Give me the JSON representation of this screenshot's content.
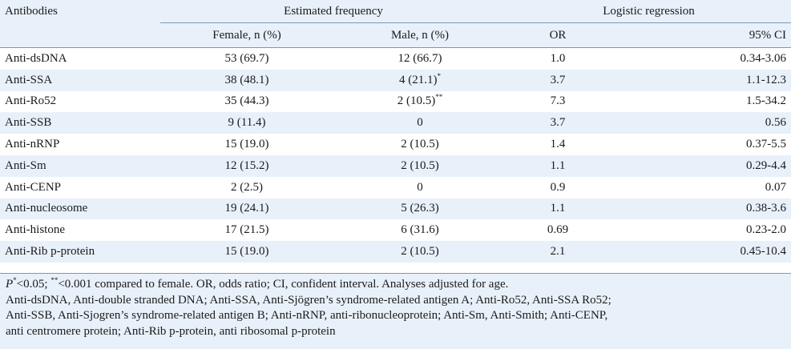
{
  "table": {
    "header": {
      "col_antibodies": "Antibodies",
      "group_frequency": "Estimated frequency",
      "group_regression": "Logistic regression",
      "col_female": "Female, n (%)",
      "col_male": "Male, n (%)",
      "col_or": "OR",
      "col_ci": "95% CI"
    },
    "rows": [
      {
        "antibody": "Anti-dsDNA",
        "female": "53 (69.7)",
        "male": "12 (66.7)",
        "male_mark": "",
        "or": "1.0",
        "ci": "0.34-3.06"
      },
      {
        "antibody": "Anti-SSA",
        "female": "38 (48.1)",
        "male": "4 (21.1)",
        "male_mark": "*",
        "or": "3.7",
        "ci": "1.1-12.3"
      },
      {
        "antibody": "Anti-Ro52",
        "female": "35 (44.3)",
        "male": "2 (10.5)",
        "male_mark": "**",
        "or": "7.3",
        "ci": "1.5-34.2"
      },
      {
        "antibody": "Anti-SSB",
        "female": "9 (11.4)",
        "male": "0",
        "male_mark": "",
        "or": "3.7",
        "ci": "0.56"
      },
      {
        "antibody": "Anti-nRNP",
        "female": "15 (19.0)",
        "male": "2 (10.5)",
        "male_mark": "",
        "or": "1.4",
        "ci": "0.37-5.5"
      },
      {
        "antibody": "Anti-Sm",
        "female": "12 (15.2)",
        "male": "2 (10.5)",
        "male_mark": "",
        "or": "1.1",
        "ci": "0.29-4.4"
      },
      {
        "antibody": "Anti-CENP",
        "female": "2 (2.5)",
        "male": "0",
        "male_mark": "",
        "or": "0.9",
        "ci": "0.07"
      },
      {
        "antibody": "Anti-nucleosome",
        "female": "19 (24.1)",
        "male": "5 (26.3)",
        "male_mark": "",
        "or": "1.1",
        "ci": "0.38-3.6"
      },
      {
        "antibody": "Anti-histone",
        "female": "17 (21.5)",
        "male": "6 (31.6)",
        "male_mark": "",
        "or": "0.69",
        "ci": "0.23-2.0"
      },
      {
        "antibody": "Anti-Rib p-protein",
        "female": "15 (19.0)",
        "male": "2 (10.5)",
        "male_mark": "",
        "or": "2.1",
        "ci": "0.45-10.4"
      }
    ]
  },
  "notes": {
    "p_letter": "P",
    "p_mark": "*",
    "line1_a": "<0.05; ",
    "line1_mark2": "**",
    "line1_b": "<0.001 compared to female. OR, odds ratio; CI, confident interval. Analyses adjusted for age.",
    "line2": "Anti-dsDNA, Anti-double stranded DNA; Anti-SSA, Anti-Sjögren’s syndrome-related antigen A; Anti-Ro52, Anti-SSA Ro52;",
    "line3": "Anti-SSB, Anti-Sjogren’s syndrome-related antigen B; Anti-nRNP, anti-ribonucleoprotein; Anti-Sm, Anti-Smith; Anti-CENP,",
    "line4": "anti centromere protein; Anti-Rib p-protein, anti ribosomal p-protein"
  }
}
